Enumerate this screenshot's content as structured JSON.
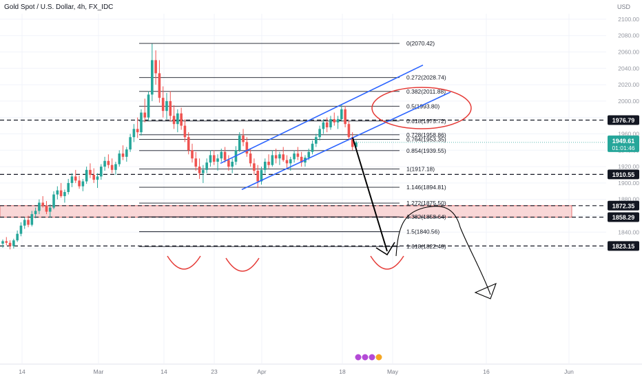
{
  "header": {
    "title": "Gold Spot / U.S. Dollar, 4h, FX_IDC",
    "currency": "USD"
  },
  "colors": {
    "up": "#26a69a",
    "down": "#ef5350",
    "channel": "#2962ff",
    "annotation": "#e53935",
    "grid": "#f0f3fa",
    "zone": "#f7c9c9"
  },
  "chart_data": {
    "type": "candlestick",
    "ylim": [
      1810,
      2110
    ],
    "y_ticks": [
      "2100.00",
      "2080.00",
      "2060.00",
      "2040.00",
      "2020.00",
      "2000.00",
      "1980.00",
      "1960.00",
      "1940.00",
      "1920.00",
      "1900.00",
      "1880.00",
      "1860.00",
      "1840.00",
      "1820.00"
    ],
    "x_ticks": [
      "14",
      "Mar",
      "14",
      "23",
      "Apr",
      "18",
      "May",
      "16",
      "Jun"
    ],
    "fib_levels": [
      {
        "ratio": "0",
        "label": "0(2070.42)",
        "value": 2070.42
      },
      {
        "ratio": "0.272",
        "label": "0.272(2028.74)",
        "value": 2028.74
      },
      {
        "ratio": "0.382",
        "label": "0.382(2011.88)",
        "value": 2011.88
      },
      {
        "ratio": "0.5",
        "label": "0.5(1993.80)",
        "value": 1993.8
      },
      {
        "ratio": "0.618",
        "label": "0.618(1975.72)",
        "value": 1975.72
      },
      {
        "ratio": "0.728",
        "label": "0.728(1958.86)",
        "value": 1958.86
      },
      {
        "ratio": "0.764",
        "label": "0.764(1953.35)",
        "value": 1953.35
      },
      {
        "ratio": "0.854",
        "label": "0.854(1939.55)",
        "value": 1939.55
      },
      {
        "ratio": "1",
        "label": "1(1917.18)",
        "value": 1917.18
      },
      {
        "ratio": "1.146",
        "label": "1.146(1894.81)",
        "value": 1894.81
      },
      {
        "ratio": "1.272",
        "label": "1.272(1875.50)",
        "value": 1875.5
      },
      {
        "ratio": "1.382",
        "label": "1.382(1858.64)",
        "value": 1858.64
      },
      {
        "ratio": "1.5",
        "label": "1.5(1840.56)",
        "value": 1840.56
      },
      {
        "ratio": "1.618",
        "label": "1.618(1822.48)",
        "value": 1822.48
      }
    ],
    "horizontal_levels": [
      {
        "label": "1976.79",
        "value": 1976.79
      },
      {
        "label": "1910.55",
        "value": 1910.55
      },
      {
        "label": "1872.35",
        "value": 1872.35
      },
      {
        "label": "1858.29",
        "value": 1858.29
      },
      {
        "label": "1823.15",
        "value": 1823.15
      }
    ],
    "current_price": {
      "label": "1949.61",
      "countdown": "01:01:46",
      "value": 1949.61
    },
    "zone": {
      "top": 1872.35,
      "bottom": 1858.29
    },
    "channel": {
      "upper": [
        [
          2024,
          "2022-03-10",
          1959
        ],
        [
          2024,
          "2022-04-25",
          2044
        ]
      ],
      "lower": [
        [
          2024,
          "2022-03-31",
          1892
        ],
        [
          2024,
          "2022-05-06",
          2011
        ]
      ]
    },
    "candles": [
      [
        1826,
        1831,
        1821,
        1829
      ],
      [
        1829,
        1834,
        1824,
        1827
      ],
      [
        1827,
        1830,
        1819,
        1823
      ],
      [
        1823,
        1832,
        1820,
        1830
      ],
      [
        1830,
        1842,
        1828,
        1838
      ],
      [
        1838,
        1852,
        1835,
        1848
      ],
      [
        1848,
        1858,
        1844,
        1855
      ],
      [
        1855,
        1860,
        1846,
        1849
      ],
      [
        1849,
        1866,
        1847,
        1862
      ],
      [
        1862,
        1870,
        1857,
        1866
      ],
      [
        1866,
        1880,
        1862,
        1876
      ],
      [
        1876,
        1884,
        1870,
        1872
      ],
      [
        1872,
        1878,
        1862,
        1865
      ],
      [
        1865,
        1874,
        1858,
        1870
      ],
      [
        1870,
        1890,
        1868,
        1886
      ],
      [
        1886,
        1896,
        1880,
        1891
      ],
      [
        1891,
        1900,
        1882,
        1884
      ],
      [
        1884,
        1892,
        1876,
        1889
      ],
      [
        1889,
        1905,
        1886,
        1900
      ],
      [
        1900,
        1912,
        1895,
        1908
      ],
      [
        1908,
        1916,
        1900,
        1903
      ],
      [
        1903,
        1909,
        1893,
        1896
      ],
      [
        1896,
        1905,
        1890,
        1902
      ],
      [
        1902,
        1920,
        1899,
        1916
      ],
      [
        1916,
        1924,
        1906,
        1910
      ],
      [
        1910,
        1918,
        1900,
        1904
      ],
      [
        1904,
        1912,
        1894,
        1908
      ],
      [
        1908,
        1923,
        1904,
        1920
      ],
      [
        1920,
        1932,
        1915,
        1927
      ],
      [
        1927,
        1935,
        1918,
        1922
      ],
      [
        1922,
        1930,
        1912,
        1916
      ],
      [
        1916,
        1926,
        1910,
        1923
      ],
      [
        1923,
        1940,
        1920,
        1936
      ],
      [
        1936,
        1946,
        1928,
        1932
      ],
      [
        1932,
        1944,
        1926,
        1941
      ],
      [
        1941,
        1960,
        1938,
        1956
      ],
      [
        1956,
        1972,
        1950,
        1966
      ],
      [
        1966,
        1980,
        1955,
        1962
      ],
      [
        1962,
        1990,
        1958,
        1986
      ],
      [
        1986,
        2003,
        1974,
        1980
      ],
      [
        1980,
        2012,
        1976,
        2008
      ],
      [
        2008,
        2070,
        2000,
        2050
      ],
      [
        2050,
        2062,
        2020,
        2034
      ],
      [
        2034,
        2050,
        1998,
        2004
      ],
      [
        2004,
        2018,
        1980,
        1988
      ],
      [
        1988,
        2010,
        1978,
        2000
      ],
      [
        2000,
        2012,
        1975,
        1982
      ],
      [
        1982,
        1995,
        1966,
        1972
      ],
      [
        1972,
        1990,
        1962,
        1985
      ],
      [
        1985,
        1992,
        1965,
        1970
      ],
      [
        1970,
        1978,
        1950,
        1956
      ],
      [
        1956,
        1962,
        1935,
        1940
      ],
      [
        1940,
        1948,
        1925,
        1930
      ],
      [
        1930,
        1938,
        1915,
        1920
      ],
      [
        1920,
        1930,
        1905,
        1912
      ],
      [
        1912,
        1922,
        1900,
        1916
      ],
      [
        1916,
        1930,
        1912,
        1925
      ],
      [
        1925,
        1940,
        1920,
        1934
      ],
      [
        1934,
        1940,
        1922,
        1926
      ],
      [
        1926,
        1935,
        1915,
        1930
      ],
      [
        1930,
        1942,
        1926,
        1938
      ],
      [
        1938,
        1944,
        1925,
        1928
      ],
      [
        1928,
        1934,
        1915,
        1920
      ],
      [
        1920,
        1930,
        1912,
        1926
      ],
      [
        1926,
        1945,
        1922,
        1940
      ],
      [
        1940,
        1962,
        1938,
        1958
      ],
      [
        1958,
        1966,
        1945,
        1950
      ],
      [
        1950,
        1956,
        1932,
        1936
      ],
      [
        1936,
        1942,
        1920,
        1924
      ],
      [
        1924,
        1930,
        1910,
        1915
      ],
      [
        1915,
        1922,
        1894,
        1902
      ],
      [
        1902,
        1920,
        1898,
        1916
      ],
      [
        1916,
        1930,
        1912,
        1926
      ],
      [
        1926,
        1935,
        1918,
        1922
      ],
      [
        1922,
        1940,
        1920,
        1934
      ],
      [
        1934,
        1942,
        1924,
        1930
      ],
      [
        1930,
        1938,
        1922,
        1935
      ],
      [
        1935,
        1944,
        1926,
        1928
      ],
      [
        1928,
        1934,
        1918,
        1924
      ],
      [
        1924,
        1932,
        1915,
        1929
      ],
      [
        1929,
        1940,
        1925,
        1936
      ],
      [
        1936,
        1944,
        1928,
        1932
      ],
      [
        1932,
        1938,
        1920,
        1925
      ],
      [
        1925,
        1934,
        1920,
        1931
      ],
      [
        1931,
        1942,
        1928,
        1938
      ],
      [
        1938,
        1952,
        1935,
        1948
      ],
      [
        1948,
        1960,
        1944,
        1956
      ],
      [
        1956,
        1970,
        1952,
        1966
      ],
      [
        1966,
        1978,
        1960,
        1974
      ],
      [
        1974,
        1980,
        1962,
        1968
      ],
      [
        1968,
        1982,
        1965,
        1978
      ],
      [
        1978,
        1986,
        1970,
        1974
      ],
      [
        1974,
        1982,
        1966,
        1978
      ],
      [
        1978,
        1996,
        1975,
        1990
      ],
      [
        1990,
        1994,
        1968,
        1972
      ],
      [
        1972,
        1976,
        1952,
        1956
      ],
      [
        1956,
        1962,
        1940,
        1944
      ],
      [
        1944,
        1952,
        1940,
        1949.61
      ]
    ]
  }
}
